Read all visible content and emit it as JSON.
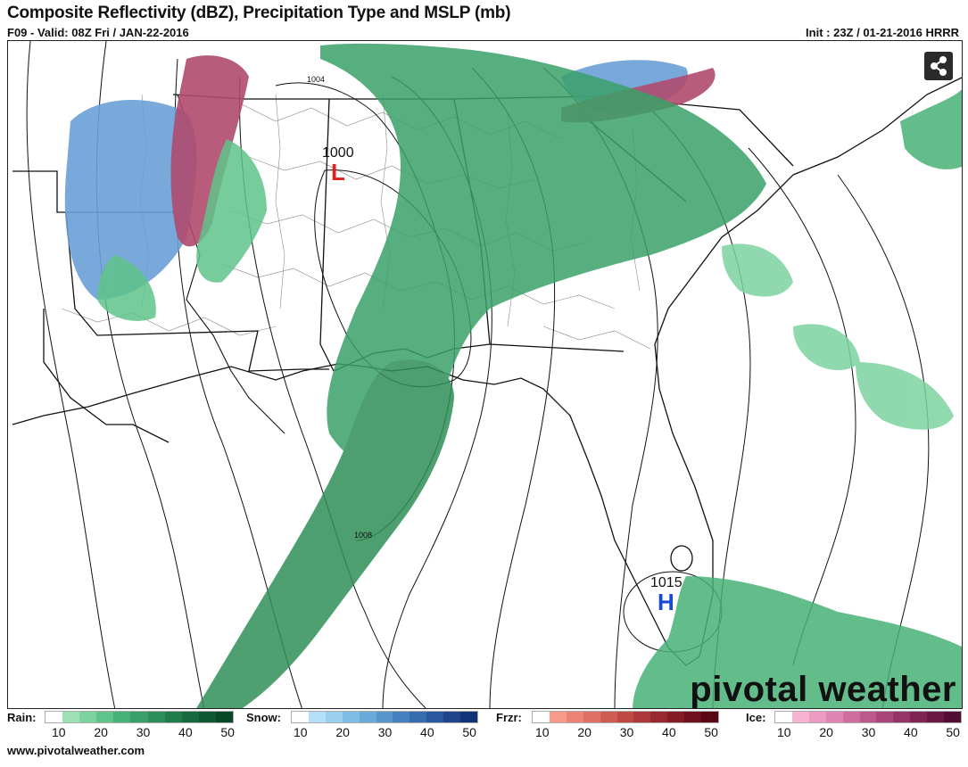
{
  "header": {
    "title": "Composite Reflectivity (dBZ), Precipitation Type and MSLP (mb)",
    "forecast": "F09 - Valid: 08Z Fri / JAN-22-2016",
    "init": "Init : 23Z / 01-21-2016 HRRR"
  },
  "map": {
    "low_pressure": {
      "value": "1000",
      "symbol": "L"
    },
    "high_pressure": {
      "value": "1015",
      "symbol": "H"
    },
    "isobar_labels": [
      "1004",
      "1008"
    ],
    "brand": "pivotal weather",
    "share_icon": "share-icon"
  },
  "legend": {
    "rain": {
      "label": "Rain:",
      "ticks": [
        "10",
        "20",
        "30",
        "40",
        "50"
      ],
      "colors": [
        "#ffffff",
        "#9ee0b6",
        "#7dd3a0",
        "#5fc48a",
        "#47b277",
        "#38a068",
        "#2c8e5a",
        "#217c4c",
        "#176a3f",
        "#0f5833",
        "#084727"
      ]
    },
    "snow": {
      "label": "Snow:",
      "ticks": [
        "10",
        "20",
        "30",
        "40",
        "50"
      ],
      "colors": [
        "#ffffff",
        "#b4e0f7",
        "#9acfee",
        "#80bde4",
        "#6aa9d8",
        "#5795cb",
        "#4680bd",
        "#376cae",
        "#2a589e",
        "#1e458c",
        "#133379"
      ]
    },
    "frzr": {
      "label": "Frzr:",
      "ticks": [
        "10",
        "20",
        "30",
        "40",
        "50"
      ],
      "colors": [
        "#ffffff",
        "#f79b8b",
        "#ec8476",
        "#df6f63",
        "#d05b53",
        "#bf4845",
        "#ac3839",
        "#98292e",
        "#831c24",
        "#6e101b",
        "#590713"
      ]
    },
    "ice": {
      "label": "Ice:",
      "ticks": [
        "10",
        "20",
        "30",
        "40",
        "50"
      ],
      "colors": [
        "#ffffff",
        "#f7b4d2",
        "#ec9bc2",
        "#df83b1",
        "#cf6d9f",
        "#bd588d",
        "#a9457a",
        "#943467",
        "#7e2554",
        "#681843",
        "#520d33"
      ]
    }
  },
  "footer": {
    "url": "www.pivotalweather.com"
  }
}
